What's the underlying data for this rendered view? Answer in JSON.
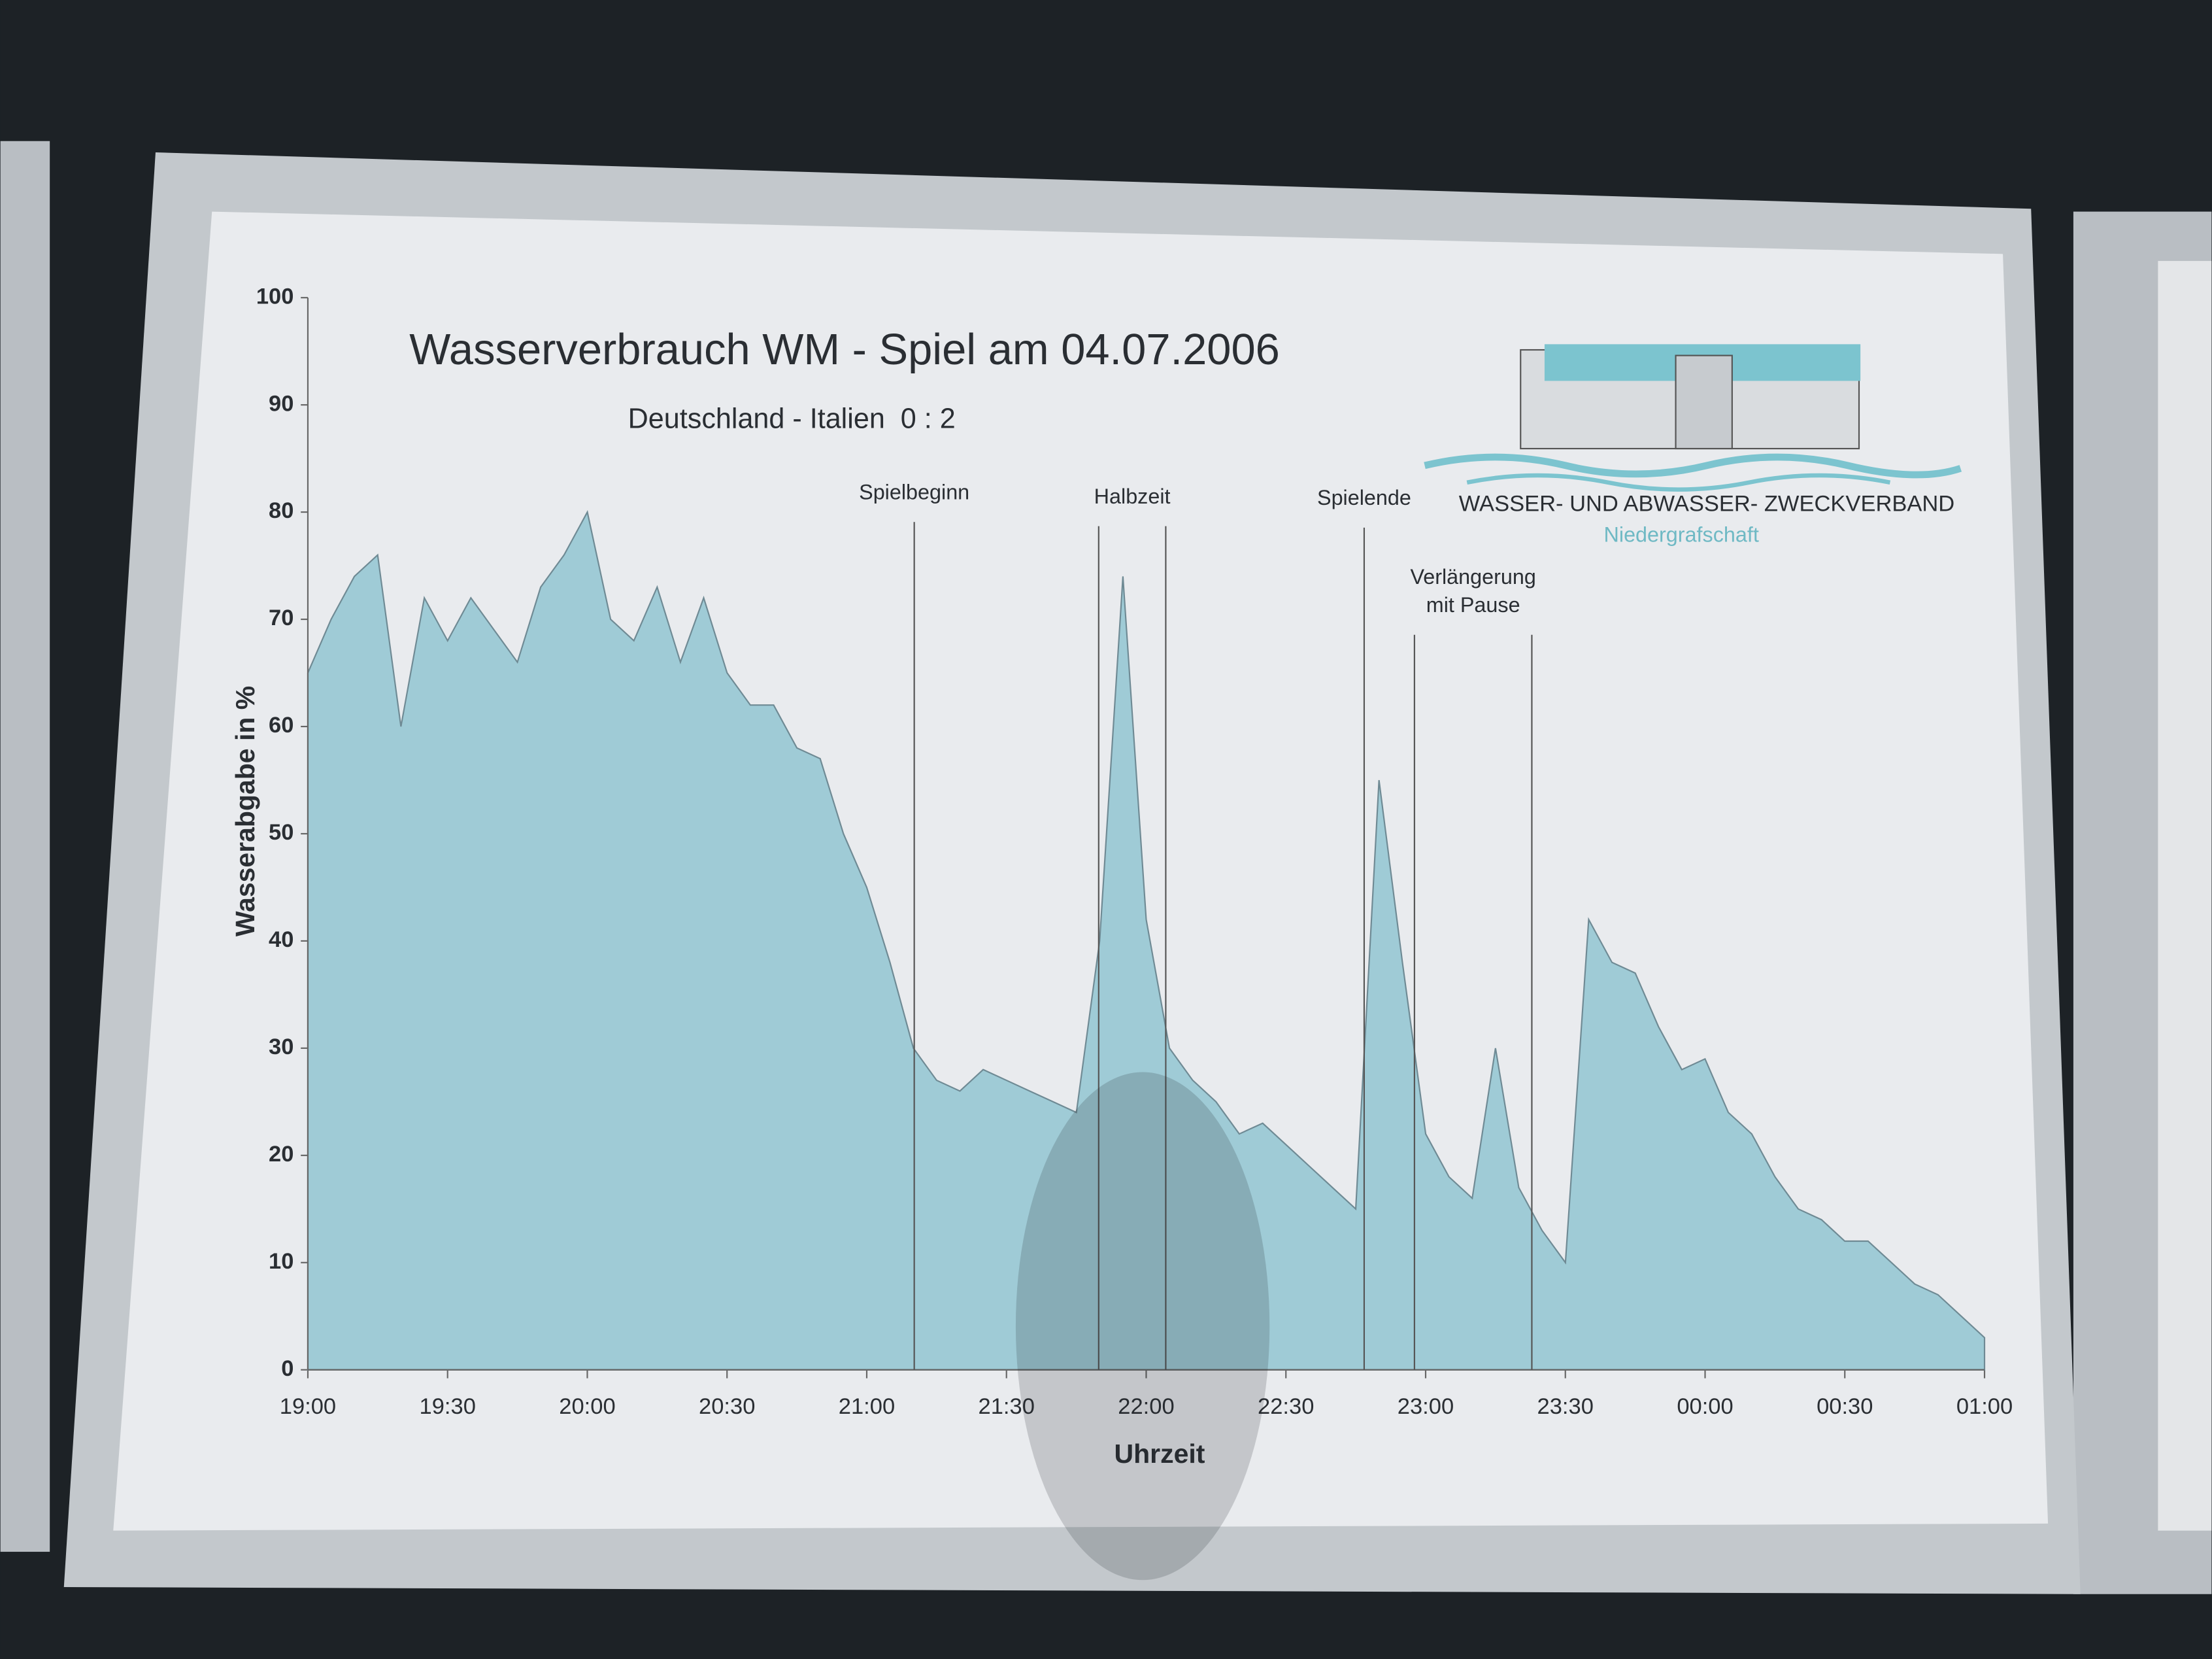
{
  "chart_data": {
    "type": "area",
    "title": "Wasserverbrauch WM - Spiel am 04.07.2006",
    "subtitle": "Deutschland - Italien  0 : 2",
    "xlabel": "Uhrzeit",
    "ylabel": "Wasserabgabe in %",
    "color": "#9fcbd6",
    "line_color": "#6f8a94",
    "x": [
      19,
      19.0833,
      19.1667,
      19.25,
      19.3333,
      19.4167,
      19.5,
      19.5833,
      19.6667,
      19.75,
      19.8333,
      19.9167,
      20,
      20.0833,
      20.1667,
      20.25,
      20.3333,
      20.4167,
      20.5,
      20.5833,
      20.6667,
      20.75,
      20.8333,
      20.9167,
      21,
      21.0833,
      21.1667,
      21.25,
      21.3333,
      21.4167,
      21.5,
      21.5833,
      21.6667,
      21.75,
      21.8333,
      21.9167,
      22,
      22.0833,
      22.1667,
      22.25,
      22.3333,
      22.4167,
      22.5,
      22.5833,
      22.6667,
      22.75,
      22.8333,
      22.9167,
      23,
      23.0833,
      23.1667,
      23.25,
      23.3333,
      23.4167,
      23.5,
      23.5833,
      23.6667,
      23.75,
      23.8333,
      23.9167,
      24,
      24.0833,
      24.1667,
      24.25,
      24.3333,
      24.4167,
      24.5,
      24.5833,
      24.6667,
      24.75,
      24.8333,
      24.9167,
      25
    ],
    "values": [
      65,
      70,
      74,
      76,
      60,
      72,
      68,
      72,
      69,
      66,
      73,
      76,
      80,
      70,
      68,
      73,
      66,
      72,
      65,
      62,
      62,
      58,
      57,
      50,
      45,
      38,
      30,
      27,
      26,
      28,
      27,
      26,
      25,
      24,
      40,
      74,
      42,
      30,
      27,
      25,
      22,
      23,
      21,
      19,
      17,
      15,
      55,
      38,
      22,
      18,
      16,
      30,
      17,
      13,
      10,
      42,
      38,
      37,
      32,
      28,
      29,
      24,
      22,
      18,
      15,
      14,
      12,
      12,
      10,
      8,
      7,
      5,
      3
    ],
    "xlim": [
      19,
      25
    ],
    "ylim": [
      0,
      100
    ],
    "yticks": [
      0,
      10,
      20,
      30,
      40,
      50,
      60,
      70,
      80,
      90,
      100
    ],
    "xticks": [
      {
        "value": 19,
        "label": "19:00"
      },
      {
        "value": 19.5,
        "label": "19:30"
      },
      {
        "value": 20,
        "label": "20:00"
      },
      {
        "value": 20.5,
        "label": "20:30"
      },
      {
        "value": 21,
        "label": "21:00"
      },
      {
        "value": 21.5,
        "label": "21:30"
      },
      {
        "value": 22,
        "label": "22:00"
      },
      {
        "value": 22.5,
        "label": "22:30"
      },
      {
        "value": 23,
        "label": "23:00"
      },
      {
        "value": 23.5,
        "label": "23:30"
      },
      {
        "value": 24,
        "label": "00:00"
      },
      {
        "value": 24.5,
        "label": "00:30"
      },
      {
        "value": 25,
        "label": "01:00"
      }
    ],
    "markers": [
      {
        "label": [
          "Spielbeginn"
        ],
        "x": [
          21.17
        ]
      },
      {
        "label": [
          "Halbzeit"
        ],
        "x": [
          21.83,
          22.07
        ]
      },
      {
        "label": [
          "Spielende"
        ],
        "x": [
          22.78
        ]
      },
      {
        "label": [
          "Verlängerung",
          "mit Pause"
        ],
        "x": [
          22.96,
          23.38
        ]
      }
    ],
    "logo": {
      "name": "WASSER- UND ABWASSER- ZWECKVERBAND",
      "region": "Niedergrafschaft"
    }
  }
}
